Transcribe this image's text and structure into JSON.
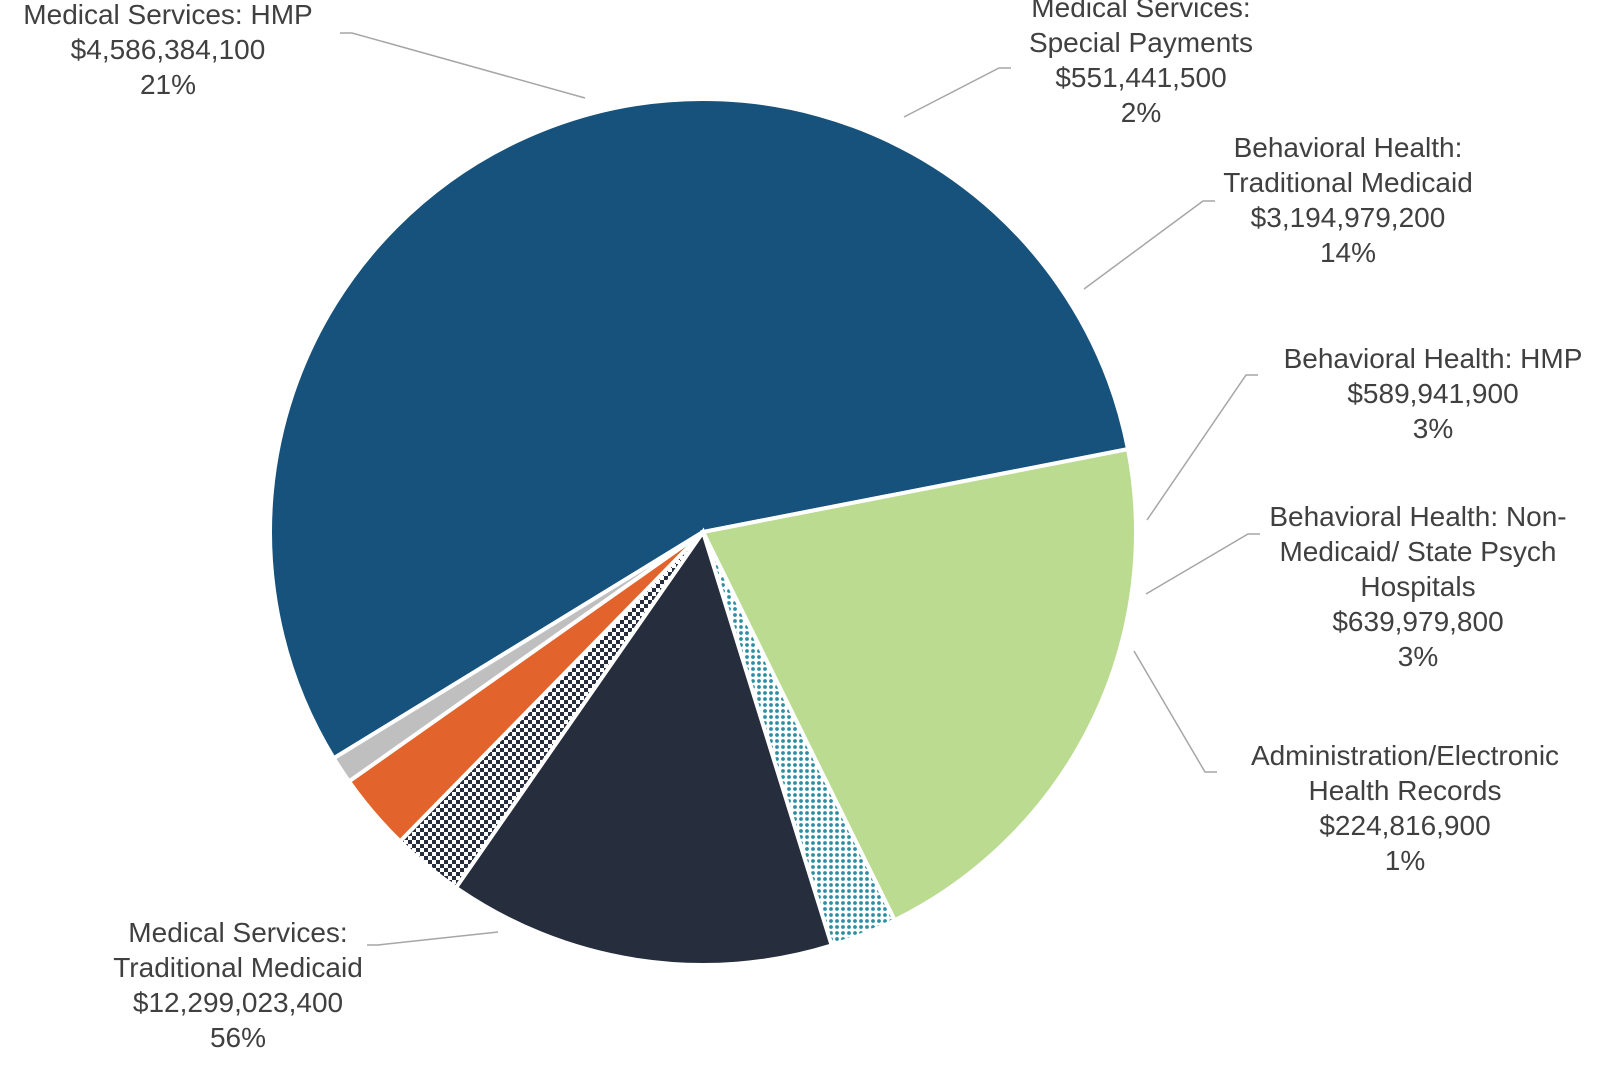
{
  "chart_data": {
    "type": "pie",
    "title": "",
    "slices": [
      {
        "name": "Medical Services: Traditional Medicaid",
        "label_lines": [
          "Medical Services:",
          "Traditional Medicaid"
        ],
        "value": 12299023400,
        "value_label": "$12,299,023,400",
        "percent_label": "56%",
        "color": "#17527c",
        "pattern": "solid"
      },
      {
        "name": "Medical Services: HMP",
        "label_lines": [
          "Medical Services: HMP"
        ],
        "value": 4586384100,
        "value_label": "$4,586,384,100",
        "percent_label": "21%",
        "color": "#bbdb91",
        "pattern": "solid"
      },
      {
        "name": "Medical Services: Special Payments",
        "label_lines": [
          "Medical Services:",
          "Special Payments"
        ],
        "value": 551441500,
        "value_label": "$551,441,500",
        "percent_label": "2%",
        "color": "#2e8fa3",
        "pattern": "dots"
      },
      {
        "name": "Behavioral Health: Traditional Medicaid",
        "label_lines": [
          "Behavioral Health:",
          "Traditional Medicaid"
        ],
        "value": 3194979200,
        "value_label": "$3,194,979,200",
        "percent_label": "14%",
        "color": "#262d3c",
        "pattern": "solid"
      },
      {
        "name": "Behavioral Health: HMP",
        "label_lines": [
          "Behavioral Health: HMP"
        ],
        "value": 589941900,
        "value_label": "$589,941,900",
        "percent_label": "3%",
        "color": "#262d3c",
        "pattern": "checker"
      },
      {
        "name": "Behavioral Health: Non-Medicaid/ State Psych Hospitals",
        "label_lines": [
          "Behavioral Health: Non-",
          "Medicaid/ State Psych",
          "Hospitals"
        ],
        "value": 639979800,
        "value_label": "$639,979,800",
        "percent_label": "3%",
        "color": "#e2632b",
        "pattern": "solid"
      },
      {
        "name": "Administration/Electronic Health Records",
        "label_lines": [
          "Administration/Electronic",
          "Health Records"
        ],
        "value": 224816900,
        "value_label": "$224,816,900",
        "percent_label": "1%",
        "color": "#bfbfbf",
        "pattern": "solid"
      }
    ],
    "legend": "none"
  }
}
